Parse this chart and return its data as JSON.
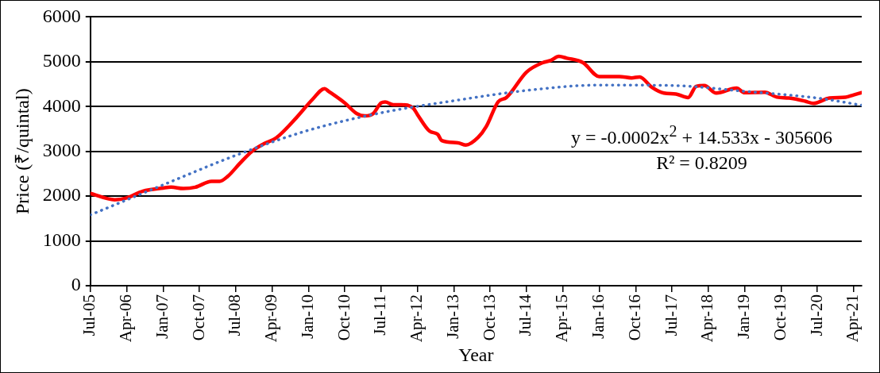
{
  "chart_data": {
    "type": "line",
    "xlabel": "Year",
    "ylabel": "Price (₹/quintal)",
    "xlim": [
      "2005-07",
      "2021-06"
    ],
    "xticks": [
      {
        "value": "2005-07",
        "label": "Jul-05"
      },
      {
        "value": "2006-04",
        "label": "Apr-06"
      },
      {
        "value": "2007-01",
        "label": "Jan-07"
      },
      {
        "value": "2007-10",
        "label": "Oct-07"
      },
      {
        "value": "2008-07",
        "label": "Jul-08"
      },
      {
        "value": "2009-04",
        "label": "Apr-09"
      },
      {
        "value": "2010-01",
        "label": "Jan-10"
      },
      {
        "value": "2010-10",
        "label": "Oct-10"
      },
      {
        "value": "2011-07",
        "label": "Jul-11"
      },
      {
        "value": "2012-04",
        "label": "Apr-12"
      },
      {
        "value": "2013-01",
        "label": "Jan-13"
      },
      {
        "value": "2013-10",
        "label": "Oct-13"
      },
      {
        "value": "2014-07",
        "label": "Jul-14"
      },
      {
        "value": "2015-04",
        "label": "Apr-15"
      },
      {
        "value": "2016-01",
        "label": "Jan-16"
      },
      {
        "value": "2016-10",
        "label": "Oct-16"
      },
      {
        "value": "2017-07",
        "label": "Jul-17"
      },
      {
        "value": "2018-04",
        "label": "Apr-18"
      },
      {
        "value": "2019-01",
        "label": "Jan-19"
      },
      {
        "value": "2019-10",
        "label": "Oct-19"
      },
      {
        "value": "2020-07",
        "label": "Jul-20"
      },
      {
        "value": "2021-04",
        "label": "Apr-21"
      }
    ],
    "ylim": [
      0,
      6000
    ],
    "yticks": [
      0,
      1000,
      2000,
      3000,
      4000,
      5000,
      6000
    ],
    "grid": "y",
    "legend": false,
    "marker": "none",
    "series": [
      {
        "color": "#ff0000",
        "line_style": "solid",
        "x": [
          "2005-07",
          "2006-01",
          "2006-04",
          "2006-08",
          "2007-01",
          "2007-03",
          "2007-06",
          "2007-09",
          "2008-01",
          "2008-03",
          "2008-05",
          "2008-08",
          "2008-11",
          "2009-02",
          "2009-05",
          "2009-10",
          "2010-02",
          "2010-05",
          "2010-06",
          "2010-10",
          "2011-01",
          "2011-03",
          "2011-05",
          "2011-07",
          "2011-08",
          "2011-10",
          "2011-12",
          "2012-03",
          "2012-04",
          "2012-07",
          "2012-09",
          "2012-10",
          "2013-02",
          "2013-04",
          "2013-07",
          "2013-09",
          "2013-12",
          "2014-02",
          "2014-07",
          "2014-11",
          "2015-01",
          "2015-03",
          "2015-05",
          "2015-09",
          "2016-01",
          "2016-06",
          "2016-09",
          "2016-11",
          "2017-02",
          "2017-05",
          "2017-08",
          "2017-11",
          "2018-01",
          "2018-03",
          "2018-06",
          "2018-11",
          "2019-01",
          "2019-06",
          "2019-09",
          "2019-12",
          "2020-04",
          "2020-06",
          "2020-10",
          "2021-02",
          "2021-04",
          "2021-06"
        ],
        "values": [
          2060,
          1920,
          1960,
          2110,
          2180,
          2200,
          2170,
          2200,
          2330,
          2330,
          2440,
          2730,
          3000,
          3170,
          3300,
          3750,
          4160,
          4400,
          4340,
          4080,
          3840,
          3790,
          3840,
          4080,
          4100,
          4040,
          4040,
          3960,
          3820,
          3450,
          3380,
          3240,
          3190,
          3140,
          3310,
          3550,
          4110,
          4200,
          4770,
          4980,
          5030,
          5120,
          5080,
          4980,
          4670,
          4670,
          4640,
          4660,
          4430,
          4300,
          4280,
          4200,
          4450,
          4470,
          4300,
          4410,
          4310,
          4320,
          4210,
          4190,
          4120,
          4070,
          4190,
          4210,
          4260,
          4310
        ]
      },
      {
        "color": "#4472c4",
        "line_style": "dotted",
        "x": [
          "2005-07",
          "2007-01",
          "2008-07",
          "2010-01",
          "2011-07",
          "2013-01",
          "2014-07",
          "2016-01",
          "2017-07",
          "2019-01",
          "2020-07",
          "2021-06"
        ],
        "values": [
          1580,
          2250,
          2910,
          3470,
          3860,
          4130,
          4360,
          4480,
          4470,
          4340,
          4190,
          4030
        ]
      }
    ],
    "annotations": [
      "y = -0.0002x$^{2}$ + 14.533x - 305606",
      "R² = 0.8209"
    ]
  }
}
